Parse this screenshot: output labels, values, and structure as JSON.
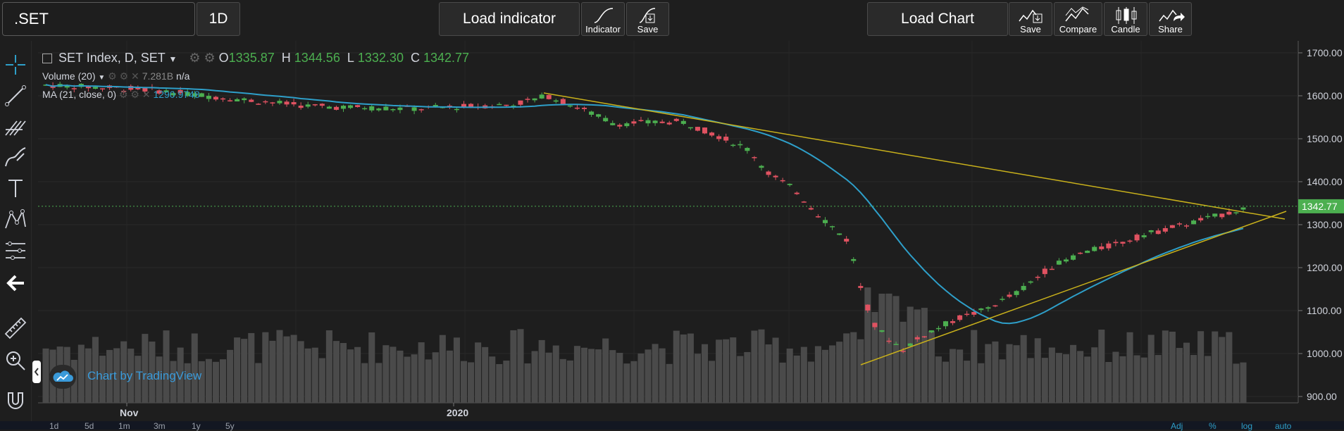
{
  "toolbar": {
    "symbol": ".SET",
    "interval": "1D",
    "load_indicator": "Load indicator",
    "indicator": "Indicator",
    "save_indicator": "Save",
    "load_chart": "Load Chart",
    "save_chart": "Save",
    "compare": "Compare",
    "candle": "Candle",
    "share": "Share"
  },
  "legend": {
    "title": "SET Index, D, SET",
    "o_label": "O",
    "o": "1335.87",
    "h_label": "H",
    "h": "1344.56",
    "l_label": "L",
    "l": "1332.30",
    "c_label": "C",
    "c": "1342.77"
  },
  "studies": {
    "volume": {
      "name": "Volume (20)",
      "value": "7.281B",
      "value2": "n/a"
    },
    "ma": {
      "name": "MA (21, close, 0)",
      "value": "1290.9748"
    }
  },
  "price_axis": {
    "ticks": [
      "1700.00",
      "1600.00",
      "1500.00",
      "1400.00",
      "1300.00",
      "1200.00",
      "1100.00",
      "1000.00",
      "900.00"
    ],
    "current": "1342.77"
  },
  "time_axis": {
    "labels": [
      "Nov",
      "2020"
    ]
  },
  "timeframes": [
    "1d",
    "5d",
    "1m",
    "3m",
    "1y",
    "5y"
  ],
  "bottom_right": [
    "Adj",
    "%",
    "log",
    "auto"
  ],
  "watermark": "Chart by TradingView",
  "colors": {
    "up": "#4caf50",
    "down": "#e05261",
    "ma": "#2e9fc9",
    "trend": "#c9b11b",
    "volume": "#4a4a4a",
    "bg": "#1e1e1e"
  }
}
